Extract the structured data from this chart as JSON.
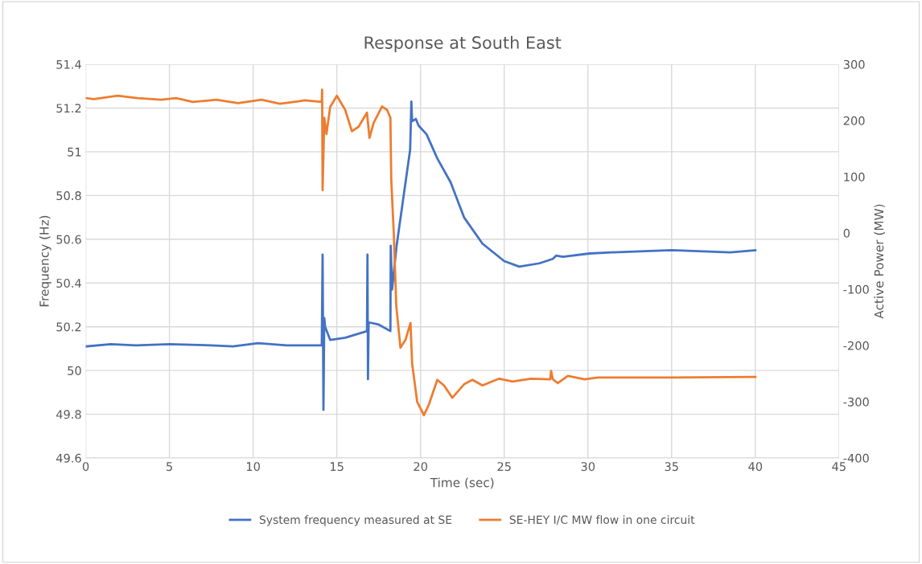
{
  "chart_data": {
    "type": "line",
    "title": "Response at South East",
    "xlabel": "Time (sec)",
    "ylabel": "Frequency (Hz)",
    "y2label": "Active Power (MW)",
    "xlim": [
      0,
      45
    ],
    "xticks": [
      0,
      5,
      10,
      15,
      20,
      25,
      30,
      35,
      40,
      45
    ],
    "ylim": [
      49.6,
      51.4
    ],
    "yticks": [
      {
        "value": 49.6,
        "label": "49.6"
      },
      {
        "value": 49.8,
        "label": "49.8"
      },
      {
        "value": 50,
        "label": "50"
      },
      {
        "value": 50.2,
        "label": "50.2"
      },
      {
        "value": 50.4,
        "label": "50.4"
      },
      {
        "value": 50.6,
        "label": "50.6"
      },
      {
        "value": 50.8,
        "label": "50.8"
      },
      {
        "value": 51,
        "label": "51"
      },
      {
        "value": 51.2,
        "label": "51.2"
      },
      {
        "value": 51.4,
        "label": "51.4"
      }
    ],
    "y2lim": [
      -400,
      300
    ],
    "y2ticks": [
      -400,
      -300,
      -200,
      -100,
      0,
      100,
      200,
      300
    ],
    "grid": true,
    "legend": "bottom",
    "marker": "none",
    "line_style": "solid",
    "series": [
      {
        "name": "System frequency measured at SE",
        "color": "#4472c4",
        "x": [
          0,
          1.5,
          3,
          5,
          7.5,
          8.8,
          10.3,
          12,
          14.1,
          14.15,
          14.2,
          14.25,
          14.3,
          14.6,
          15.5,
          16.8,
          16.83,
          16.86,
          16.9,
          17.5,
          18.2,
          18.22,
          18.3,
          18.57,
          19.38,
          19.42,
          19.45,
          19.5,
          19.72,
          19.88,
          20.36,
          21.0,
          21.8,
          22.6,
          23.7,
          25.0,
          25.9,
          27.1,
          27.9,
          28.1,
          28.5,
          30.1,
          31.4,
          35,
          38.5,
          40
        ],
        "values": [
          50.11,
          50.12,
          50.115,
          50.12,
          50.115,
          50.11,
          50.125,
          50.115,
          50.115,
          50.53,
          49.82,
          50.24,
          50.2,
          50.14,
          50.15,
          50.18,
          50.53,
          49.96,
          50.22,
          50.21,
          50.18,
          50.57,
          50.37,
          50.57,
          51.01,
          51.13,
          51.23,
          51.14,
          51.15,
          51.12,
          51.08,
          50.97,
          50.86,
          50.7,
          50.58,
          50.5,
          50.475,
          50.49,
          50.51,
          50.525,
          50.52,
          50.535,
          50.54,
          50.55,
          50.54,
          50.55
        ]
      },
      {
        "name": "SE-HEY I/C MW flow in one circuit",
        "color": "#ed7d31",
        "axis": "y2",
        "x": [
          0,
          0.47,
          1.9,
          3.1,
          4.5,
          5.4,
          6.4,
          7.8,
          9.1,
          10.5,
          11.6,
          12.7,
          13.1,
          14.1,
          14.12,
          14.15,
          14.25,
          14.38,
          14.6,
          15.0,
          15.5,
          15.9,
          16.3,
          16.8,
          16.95,
          17.2,
          17.7,
          18.0,
          18.2,
          18.25,
          18.4,
          18.55,
          18.8,
          19.1,
          19.4,
          19.5,
          19.8,
          20.2,
          20.5,
          21.0,
          21.4,
          21.9,
          22.6,
          23.1,
          23.7,
          24.7,
          25.5,
          26.6,
          27.75,
          27.8,
          27.9,
          28.2,
          28.8,
          29.8,
          30.6,
          35,
          40
        ],
        "values": [
          240,
          238,
          244,
          240,
          237,
          240,
          233,
          237,
          231,
          237,
          230,
          234,
          236,
          233,
          255,
          76,
          205,
          176,
          224,
          244,
          219,
          181,
          189,
          214,
          169,
          196,
          225,
          219,
          205,
          96,
          0,
          -129,
          -204,
          -190,
          -160,
          -233,
          -300,
          -324,
          -305,
          -261,
          -271,
          -293,
          -269,
          -261,
          -271,
          -259,
          -264,
          -259,
          -260,
          -245,
          -260,
          -267,
          -254,
          -260,
          -257,
          -257,
          -256
        ]
      }
    ]
  }
}
